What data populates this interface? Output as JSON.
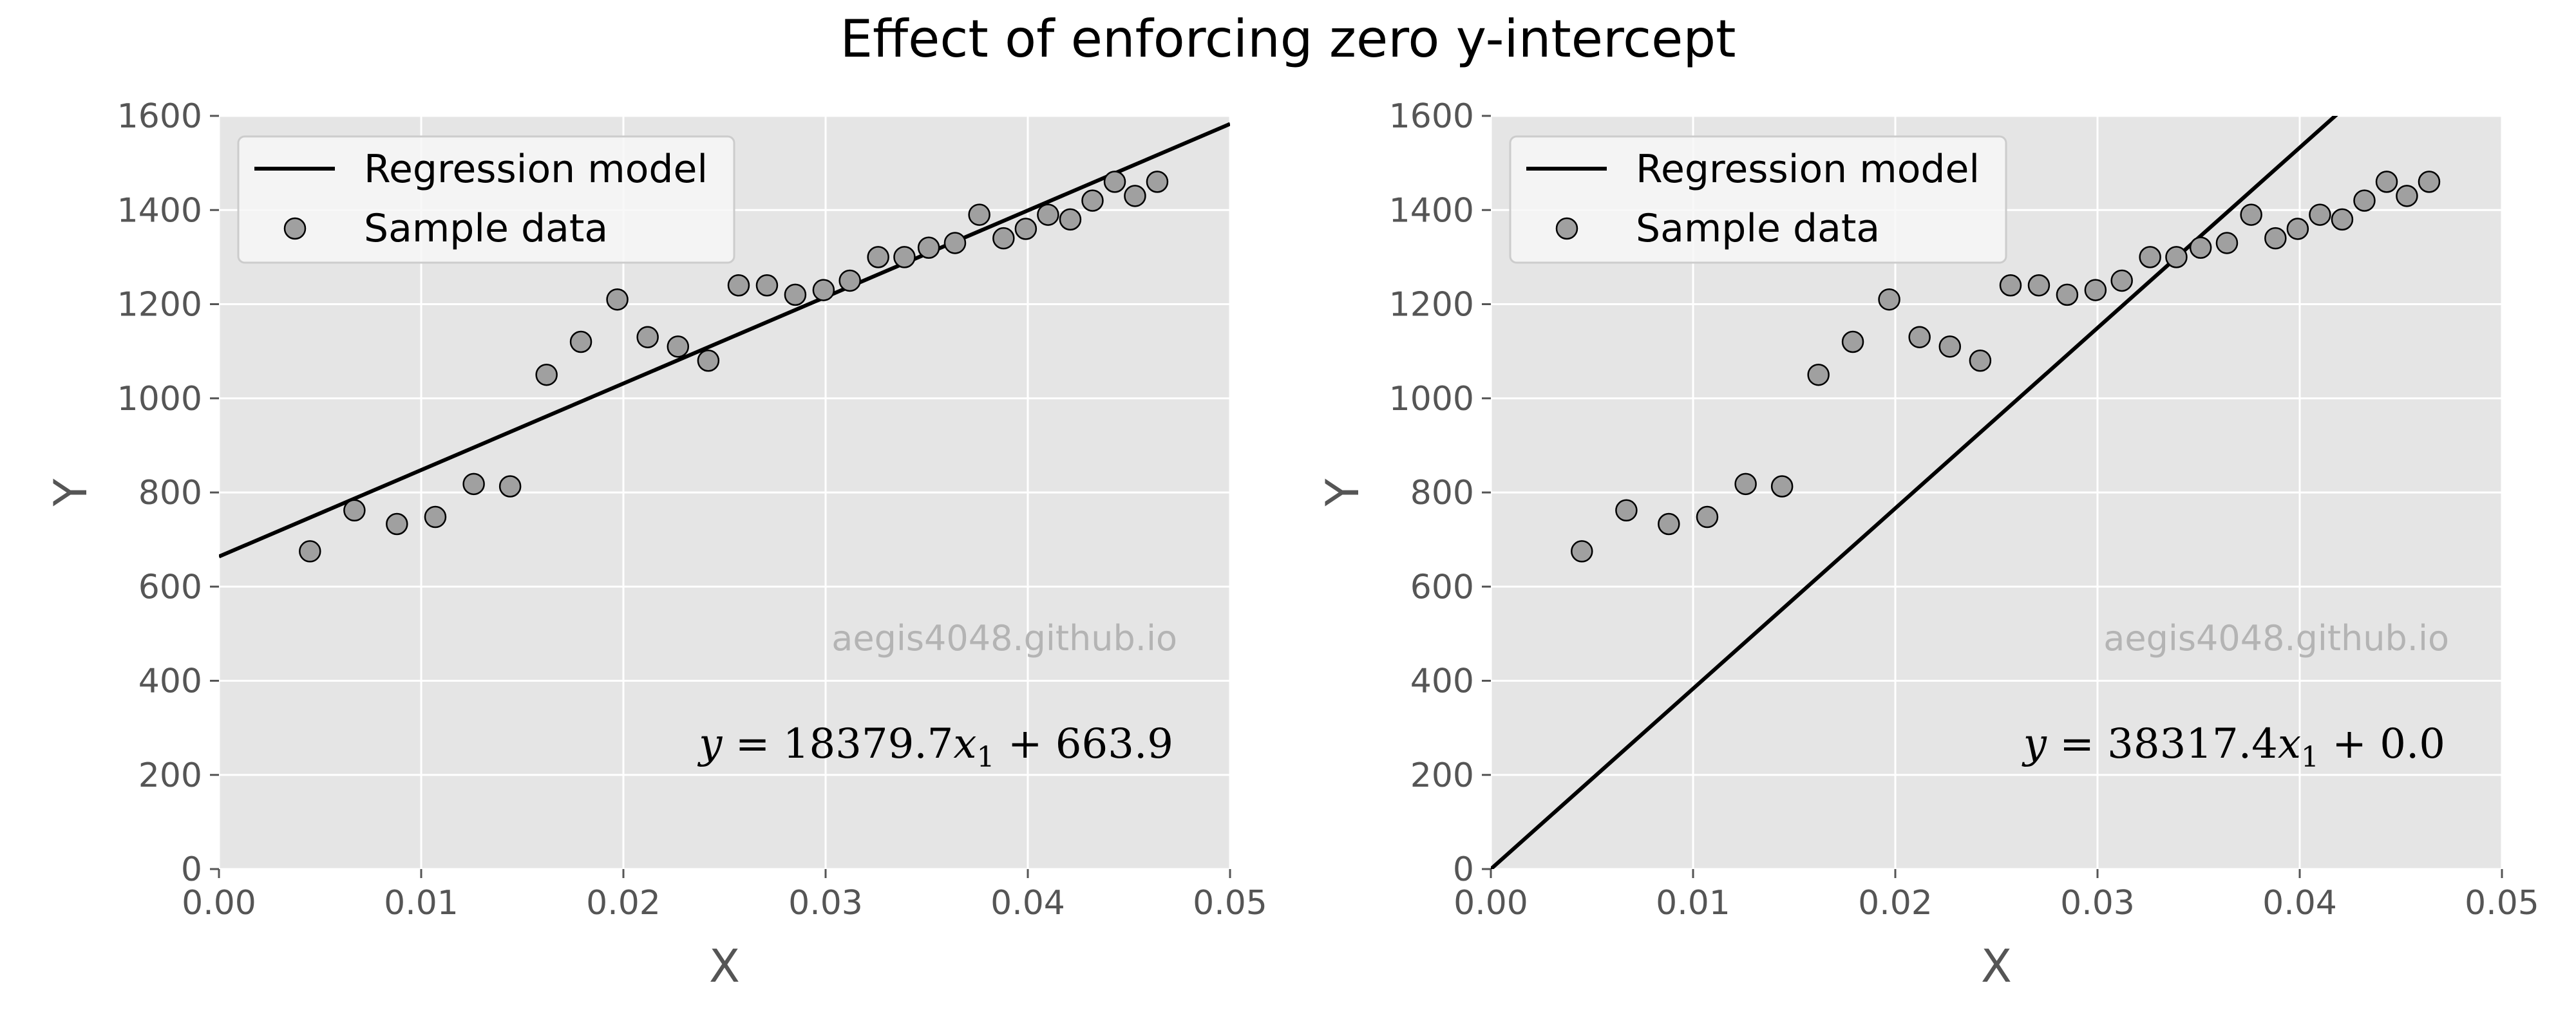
{
  "figure": {
    "title": "Effect of enforcing zero y-intercept",
    "watermark": "aegis4048.github.io"
  },
  "colors": {
    "axes_background": "#e5e5e5",
    "grid": "#ffffff",
    "line": "#000000",
    "marker_face": "#a0a0a0",
    "marker_edge": "#000000",
    "tick_text": "#555555",
    "watermark": "#b4b4b4"
  },
  "chart_data": [
    {
      "type": "scatter",
      "xlabel": "X",
      "ylabel": "Y",
      "xlim": [
        0.0,
        0.05
      ],
      "ylim": [
        0,
        1600
      ],
      "xticks": [
        "0.00",
        "0.01",
        "0.02",
        "0.03",
        "0.04",
        "0.05"
      ],
      "yticks": [
        "0",
        "200",
        "400",
        "600",
        "800",
        "1000",
        "1200",
        "1400",
        "1600"
      ],
      "grid": true,
      "legend": {
        "placement": "upper-left",
        "entries": [
          "Regression model",
          "Sample data"
        ]
      },
      "regression": {
        "slope": 18379.7,
        "intercept": 663.9
      },
      "equation": {
        "lhs": "y",
        "eq": " = 18379.7",
        "var": "x",
        "sub": "1",
        "rest": " + 663.9"
      },
      "series": [
        {
          "name": "Sample data",
          "x": [
            0.0045,
            0.0067,
            0.0088,
            0.0107,
            0.0126,
            0.0144,
            0.0162,
            0.0179,
            0.0197,
            0.0212,
            0.0227,
            0.0242,
            0.0257,
            0.0271,
            0.0285,
            0.0299,
            0.0312,
            0.0326,
            0.0339,
            0.0351,
            0.0364,
            0.0376,
            0.0388,
            0.0399,
            0.041,
            0.0421,
            0.0432,
            0.0443,
            0.0453,
            0.0464
          ],
          "y": [
            675,
            762,
            733,
            748,
            818,
            813,
            1050,
            1120,
            1210,
            1130,
            1110,
            1080,
            1240,
            1240,
            1220,
            1230,
            1250,
            1300,
            1300,
            1320,
            1330,
            1390,
            1340,
            1360,
            1390,
            1380,
            1420,
            1460,
            1430,
            1460
          ]
        }
      ]
    },
    {
      "type": "scatter",
      "xlabel": "X",
      "ylabel": "Y",
      "xlim": [
        0.0,
        0.05
      ],
      "ylim": [
        0,
        1600
      ],
      "xticks": [
        "0.00",
        "0.01",
        "0.02",
        "0.03",
        "0.04",
        "0.05"
      ],
      "yticks": [
        "0",
        "200",
        "400",
        "600",
        "800",
        "1000",
        "1200",
        "1400",
        "1600"
      ],
      "grid": true,
      "legend": {
        "placement": "upper-left",
        "entries": [
          "Regression model",
          "Sample data"
        ]
      },
      "regression": {
        "slope": 38317.4,
        "intercept": 0.0
      },
      "equation": {
        "lhs": "y",
        "eq": " = 38317.4",
        "var": "x",
        "sub": "1",
        "rest": " + 0.0"
      },
      "series": [
        {
          "name": "Sample data",
          "x": [
            0.0045,
            0.0067,
            0.0088,
            0.0107,
            0.0126,
            0.0144,
            0.0162,
            0.0179,
            0.0197,
            0.0212,
            0.0227,
            0.0242,
            0.0257,
            0.0271,
            0.0285,
            0.0299,
            0.0312,
            0.0326,
            0.0339,
            0.0351,
            0.0364,
            0.0376,
            0.0388,
            0.0399,
            0.041,
            0.0421,
            0.0432,
            0.0443,
            0.0453,
            0.0464
          ],
          "y": [
            675,
            762,
            733,
            748,
            818,
            813,
            1050,
            1120,
            1210,
            1130,
            1110,
            1080,
            1240,
            1240,
            1220,
            1230,
            1250,
            1300,
            1300,
            1320,
            1330,
            1390,
            1340,
            1360,
            1390,
            1380,
            1420,
            1460,
            1430,
            1460
          ]
        }
      ]
    }
  ]
}
